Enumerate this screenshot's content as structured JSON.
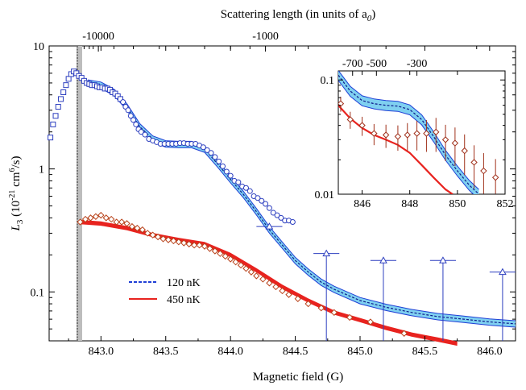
{
  "chart_data": {
    "type": "scatter",
    "main": {
      "x_axis": {
        "label": "Magnetic field (G)",
        "range": [
          842.6,
          846.2
        ],
        "ticks": [
          "843.0",
          "843.5",
          "844.0",
          "844.5",
          "845.0",
          "845.5",
          "846.0"
        ]
      },
      "top_axis": {
        "label": "Scattering length (in units of a",
        "label_sub": "0",
        "label_end": ")",
        "ticks": [
          {
            "label": "-10000",
            "field": 842.98
          },
          {
            "label": "-1000",
            "field": 844.27
          }
        ]
      },
      "y_axis": {
        "label_main": "L",
        "label_sub": "3",
        "label_unit_a": " (10",
        "label_exp1": "-21",
        "label_unit_b": " cm",
        "label_exp2": "6",
        "label_unit_c": "/s)",
        "scale": "log",
        "range": [
          0.04,
          10
        ],
        "ticks": [
          {
            "label": "10",
            "value": 10
          },
          {
            "label": "1",
            "value": 1
          },
          {
            "label": "0.1",
            "value": 0.1
          }
        ]
      },
      "resonance_field": 842.83,
      "legend": {
        "position": "lower-left",
        "entries": [
          {
            "label": "120 nK",
            "style": "dashed",
            "color": "#1f3fd6"
          },
          {
            "label": "450 nK",
            "style": "solid",
            "color": "#e8231f"
          }
        ]
      },
      "series": [
        {
          "name": "120 nK",
          "marker": "square",
          "color": "#2d3fbf",
          "points": [
            [
              842.61,
              1.8
            ],
            [
              842.63,
              2.3
            ],
            [
              842.65,
              2.7
            ],
            [
              842.67,
              3.2
            ],
            [
              842.69,
              3.7
            ],
            [
              842.71,
              4.2
            ],
            [
              842.73,
              4.8
            ],
            [
              842.75,
              5.4
            ],
            [
              842.77,
              5.9
            ],
            [
              842.79,
              6.2
            ],
            [
              842.81,
              6.0
            ],
            [
              842.83,
              5.7
            ],
            [
              842.85,
              5.5
            ],
            [
              842.87,
              5.2
            ],
            [
              842.89,
              5.0
            ],
            [
              842.91,
              4.9
            ],
            [
              842.93,
              4.8
            ],
            [
              842.95,
              4.8
            ],
            [
              842.97,
              4.7
            ],
            [
              842.99,
              4.6
            ],
            [
              843.01,
              4.6
            ],
            [
              843.03,
              4.5
            ],
            [
              843.05,
              4.5
            ],
            [
              843.07,
              4.4
            ],
            [
              843.09,
              4.2
            ],
            [
              843.11,
              4.1
            ],
            [
              843.13,
              3.9
            ],
            [
              843.15,
              3.7
            ]
          ]
        },
        {
          "name": "120 nK",
          "marker": "circle",
          "color": "#2d3fbf",
          "points": [
            [
              843.17,
              3.5
            ],
            [
              843.19,
              3.2
            ],
            [
              843.21,
              3.0
            ],
            [
              843.23,
              2.7
            ],
            [
              843.25,
              2.5
            ],
            [
              843.27,
              2.3
            ],
            [
              843.29,
              2.1
            ],
            [
              843.31,
              2.0
            ],
            [
              843.34,
              1.9
            ],
            [
              843.37,
              1.75
            ],
            [
              843.4,
              1.7
            ],
            [
              843.43,
              1.65
            ],
            [
              843.46,
              1.6
            ],
            [
              843.49,
              1.6
            ],
            [
              843.52,
              1.6
            ],
            [
              843.55,
              1.6
            ],
            [
              843.58,
              1.6
            ],
            [
              843.61,
              1.62
            ],
            [
              843.64,
              1.62
            ],
            [
              843.67,
              1.6
            ],
            [
              843.7,
              1.6
            ],
            [
              843.73,
              1.6
            ],
            [
              843.76,
              1.55
            ],
            [
              843.79,
              1.5
            ],
            [
              843.82,
              1.42
            ],
            [
              843.85,
              1.35
            ],
            [
              843.88,
              1.25
            ],
            [
              843.91,
              1.15
            ],
            [
              843.94,
              1.05
            ],
            [
              843.97,
              0.95
            ],
            [
              844.0,
              0.88
            ],
            [
              844.03,
              0.8
            ],
            [
              844.06,
              0.78
            ],
            [
              844.09,
              0.72
            ],
            [
              844.12,
              0.7
            ],
            [
              844.15,
              0.66
            ],
            [
              844.18,
              0.6
            ],
            [
              844.21,
              0.58
            ],
            [
              844.24,
              0.55
            ],
            [
              844.27,
              0.52
            ],
            [
              844.3,
              0.48
            ],
            [
              844.33,
              0.44
            ],
            [
              844.36,
              0.42
            ],
            [
              844.39,
              0.4
            ],
            [
              844.42,
              0.38
            ],
            [
              844.45,
              0.38
            ],
            [
              844.48,
              0.37
            ]
          ]
        },
        {
          "name": "120 nK",
          "marker": "triangle",
          "color": "#2d3fbf",
          "points": [
            [
              844.3,
              0.34
            ],
            [
              844.74,
              0.205
            ],
            [
              845.18,
              0.18
            ],
            [
              845.64,
              0.18
            ],
            [
              846.1,
              0.145
            ]
          ],
          "x_err": [
            0.1,
            0.1,
            0.1,
            0.1,
            0.1
          ]
        },
        {
          "name": "450 nK",
          "marker": "diamond",
          "color": "#b8421a",
          "points": [
            [
              842.84,
              0.37
            ],
            [
              842.88,
              0.39
            ],
            [
              842.92,
              0.4
            ],
            [
              842.96,
              0.41
            ],
            [
              843.0,
              0.42
            ],
            [
              843.04,
              0.4
            ],
            [
              843.08,
              0.39
            ],
            [
              843.12,
              0.37
            ],
            [
              843.16,
              0.37
            ],
            [
              843.2,
              0.36
            ],
            [
              843.24,
              0.34
            ],
            [
              843.28,
              0.33
            ],
            [
              843.32,
              0.32
            ],
            [
              843.36,
              0.3
            ],
            [
              843.4,
              0.29
            ],
            [
              843.44,
              0.28
            ],
            [
              843.48,
              0.27
            ],
            [
              843.52,
              0.265
            ],
            [
              843.56,
              0.26
            ],
            [
              843.6,
              0.255
            ],
            [
              843.64,
              0.25
            ],
            [
              843.68,
              0.245
            ],
            [
              843.72,
              0.24
            ],
            [
              843.76,
              0.24
            ],
            [
              843.8,
              0.235
            ],
            [
              843.84,
              0.225
            ],
            [
              843.88,
              0.215
            ],
            [
              843.92,
              0.205
            ],
            [
              843.96,
              0.195
            ],
            [
              844.0,
              0.185
            ],
            [
              844.04,
              0.175
            ],
            [
              844.08,
              0.165
            ],
            [
              844.12,
              0.155
            ],
            [
              844.16,
              0.145
            ],
            [
              844.2,
              0.135
            ],
            [
              844.25,
              0.127
            ],
            [
              844.3,
              0.118
            ],
            [
              844.35,
              0.11
            ],
            [
              844.4,
              0.102
            ],
            [
              844.45,
              0.095
            ],
            [
              844.52,
              0.088
            ],
            [
              844.6,
              0.08
            ],
            [
              844.7,
              0.074
            ],
            [
              844.8,
              0.068
            ],
            [
              844.92,
              0.062
            ],
            [
              845.08,
              0.057
            ],
            [
              845.34,
              0.046
            ]
          ]
        }
      ],
      "fit_curves": [
        {
          "name": "450 nK",
          "color": "#e8231f",
          "points": [
            [
              842.84,
              0.37
            ],
            [
              843.0,
              0.36
            ],
            [
              843.2,
              0.33
            ],
            [
              843.4,
              0.29
            ],
            [
              843.6,
              0.265
            ],
            [
              843.8,
              0.245
            ],
            [
              844.0,
              0.2
            ],
            [
              844.2,
              0.15
            ],
            [
              844.4,
              0.11
            ],
            [
              844.6,
              0.085
            ],
            [
              844.8,
              0.068
            ],
            [
              845.0,
              0.059
            ],
            [
              845.2,
              0.051
            ],
            [
              845.4,
              0.045
            ],
            [
              845.6,
              0.041
            ],
            [
              845.75,
              0.038
            ]
          ]
        },
        {
          "name": "120 nK",
          "color": "#1f3fd6",
          "points": [
            [
              842.9,
              5.0
            ],
            [
              843.0,
              4.8
            ],
            [
              843.1,
              4.2
            ],
            [
              843.2,
              3.2
            ],
            [
              843.3,
              2.2
            ],
            [
              843.4,
              1.75
            ],
            [
              843.5,
              1.6
            ],
            [
              843.6,
              1.58
            ],
            [
              843.7,
              1.58
            ],
            [
              843.8,
              1.45
            ],
            [
              843.9,
              1.1
            ],
            [
              844.0,
              0.82
            ],
            [
              844.1,
              0.62
            ],
            [
              844.2,
              0.45
            ],
            [
              844.3,
              0.32
            ],
            [
              844.4,
              0.24
            ],
            [
              844.5,
              0.18
            ],
            [
              844.6,
              0.145
            ],
            [
              844.7,
              0.12
            ],
            [
              844.8,
              0.105
            ],
            [
              845.0,
              0.085
            ],
            [
              845.2,
              0.075
            ],
            [
              845.4,
              0.068
            ],
            [
              845.6,
              0.063
            ],
            [
              845.8,
              0.06
            ],
            [
              846.0,
              0.057
            ],
            [
              846.2,
              0.055
            ]
          ]
        }
      ]
    },
    "inset": {
      "x_ticks": [
        "846",
        "848",
        "850",
        "852"
      ],
      "x_range": [
        845,
        852
      ],
      "top_ticks": [
        {
          "label": "-700",
          "field": 845.6
        },
        {
          "label": "-500",
          "field": 846.6
        },
        {
          "label": "-300",
          "field": 848.3
        }
      ],
      "y_scale": "log",
      "y_range": [
        0.01,
        0.12
      ],
      "y_ticks": [
        {
          "label": "0.1",
          "value": 0.1
        },
        {
          "label": "0.01",
          "value": 0.01
        }
      ],
      "diamonds": [
        [
          845.1,
          0.062
        ],
        [
          845.5,
          0.045
        ],
        [
          846.0,
          0.04
        ],
        [
          846.5,
          0.034
        ],
        [
          847.0,
          0.033
        ],
        [
          847.5,
          0.032
        ],
        [
          847.9,
          0.033
        ],
        [
          848.3,
          0.034
        ],
        [
          848.7,
          0.034
        ],
        [
          849.1,
          0.035
        ],
        [
          849.5,
          0.03
        ],
        [
          849.9,
          0.028
        ],
        [
          850.3,
          0.024
        ],
        [
          850.7,
          0.019
        ],
        [
          851.1,
          0.016
        ],
        [
          851.6,
          0.014
        ]
      ],
      "blue_fit": [
        [
          845,
          0.11
        ],
        [
          845.5,
          0.08
        ],
        [
          846,
          0.066
        ],
        [
          846.5,
          0.062
        ],
        [
          847,
          0.06
        ],
        [
          847.5,
          0.059
        ],
        [
          848,
          0.055
        ],
        [
          848.5,
          0.045
        ],
        [
          849,
          0.032
        ],
        [
          849.5,
          0.022
        ],
        [
          850,
          0.016
        ],
        [
          850.5,
          0.012
        ],
        [
          850.9,
          0.01
        ]
      ],
      "red_fit": [
        [
          845,
          0.06
        ],
        [
          845.5,
          0.046
        ],
        [
          846,
          0.038
        ],
        [
          846.5,
          0.033
        ],
        [
          847,
          0.03
        ],
        [
          847.5,
          0.027
        ],
        [
          848,
          0.023
        ],
        [
          848.5,
          0.018
        ],
        [
          849,
          0.014
        ],
        [
          849.5,
          0.011
        ],
        [
          849.8,
          0.01
        ]
      ]
    }
  }
}
